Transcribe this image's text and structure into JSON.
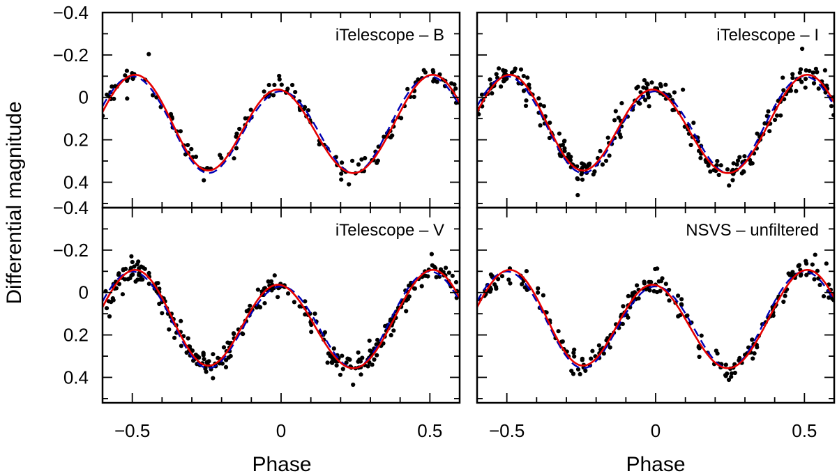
{
  "figure": {
    "ylabel": "Differential magnitude",
    "xlabel": "Phase"
  },
  "chart_data": [
    {
      "type": "scatter",
      "panel_label": "iTelescope – B",
      "xlim": [
        -0.6,
        0.6
      ],
      "ylim": [
        0.52,
        -0.4
      ],
      "y_inverted": true,
      "xticks": [
        -0.5,
        0,
        0.5
      ],
      "xtick_labels": [
        "−0.5",
        "0",
        "0.5"
      ],
      "yticks": [
        -0.4,
        -0.2,
        0,
        0.2,
        0.4
      ],
      "ytick_labels": [
        "−0.4",
        "−0.2",
        "0",
        "0.2",
        "0.4"
      ],
      "x_tick_labels_shown": false,
      "y_tick_labels_shown": true,
      "density": 1.0,
      "seed": 11,
      "series": [
        {
          "kind": "points",
          "color": "#000000"
        },
        {
          "kind": "solid-line",
          "color": "#e60000"
        },
        {
          "kind": "dashed-line",
          "color": "#0000b4"
        }
      ]
    },
    {
      "type": "scatter",
      "panel_label": "iTelescope – I",
      "xlim": [
        -0.6,
        0.6
      ],
      "ylim": [
        0.52,
        -0.4
      ],
      "y_inverted": true,
      "xticks": [
        -0.5,
        0,
        0.5
      ],
      "xtick_labels": [
        "−0.5",
        "0",
        "0.5"
      ],
      "yticks": [
        -0.4,
        -0.2,
        0,
        0.2,
        0.4
      ],
      "ytick_labels": [
        "−0.4",
        "−0.2",
        "0",
        "0.2",
        "0.4"
      ],
      "x_tick_labels_shown": false,
      "y_tick_labels_shown": false,
      "density": 1.9,
      "seed": 23,
      "series": [
        {
          "kind": "points",
          "color": "#000000"
        },
        {
          "kind": "solid-line",
          "color": "#e60000"
        },
        {
          "kind": "dashed-line",
          "color": "#0000b4"
        }
      ]
    },
    {
      "type": "scatter",
      "panel_label": "iTelescope – V",
      "xlim": [
        -0.6,
        0.6
      ],
      "ylim": [
        0.52,
        -0.4
      ],
      "y_inverted": true,
      "xticks": [
        -0.5,
        0,
        0.5
      ],
      "xtick_labels": [
        "−0.5",
        "0",
        "0.5"
      ],
      "yticks": [
        -0.4,
        -0.2,
        0,
        0.2,
        0.4
      ],
      "ytick_labels": [
        "−0.4",
        "−0.2",
        "0",
        "0.2",
        "0.4"
      ],
      "x_tick_labels_shown": true,
      "y_tick_labels_shown": true,
      "density": 2.1,
      "seed": 37,
      "series": [
        {
          "kind": "points",
          "color": "#000000"
        },
        {
          "kind": "solid-line",
          "color": "#e60000"
        },
        {
          "kind": "dashed-line",
          "color": "#0000b4"
        }
      ]
    },
    {
      "type": "scatter",
      "panel_label": "NSVS – unfiltered",
      "xlim": [
        -0.6,
        0.6
      ],
      "ylim": [
        0.52,
        -0.4
      ],
      "y_inverted": true,
      "xticks": [
        -0.5,
        0,
        0.5
      ],
      "xtick_labels": [
        "−0.5",
        "0",
        "0.5"
      ],
      "yticks": [
        -0.4,
        -0.2,
        0,
        0.2,
        0.4
      ],
      "ytick_labels": [
        "−0.4",
        "−0.2",
        "0",
        "0.2",
        "0.4"
      ],
      "x_tick_labels_shown": true,
      "y_tick_labels_shown": false,
      "density": 1.5,
      "seed": 51,
      "series": [
        {
          "kind": "points",
          "color": "#000000"
        },
        {
          "kind": "solid-line",
          "color": "#e60000"
        },
        {
          "kind": "dashed-line",
          "color": "#0000b4"
        }
      ]
    }
  ]
}
